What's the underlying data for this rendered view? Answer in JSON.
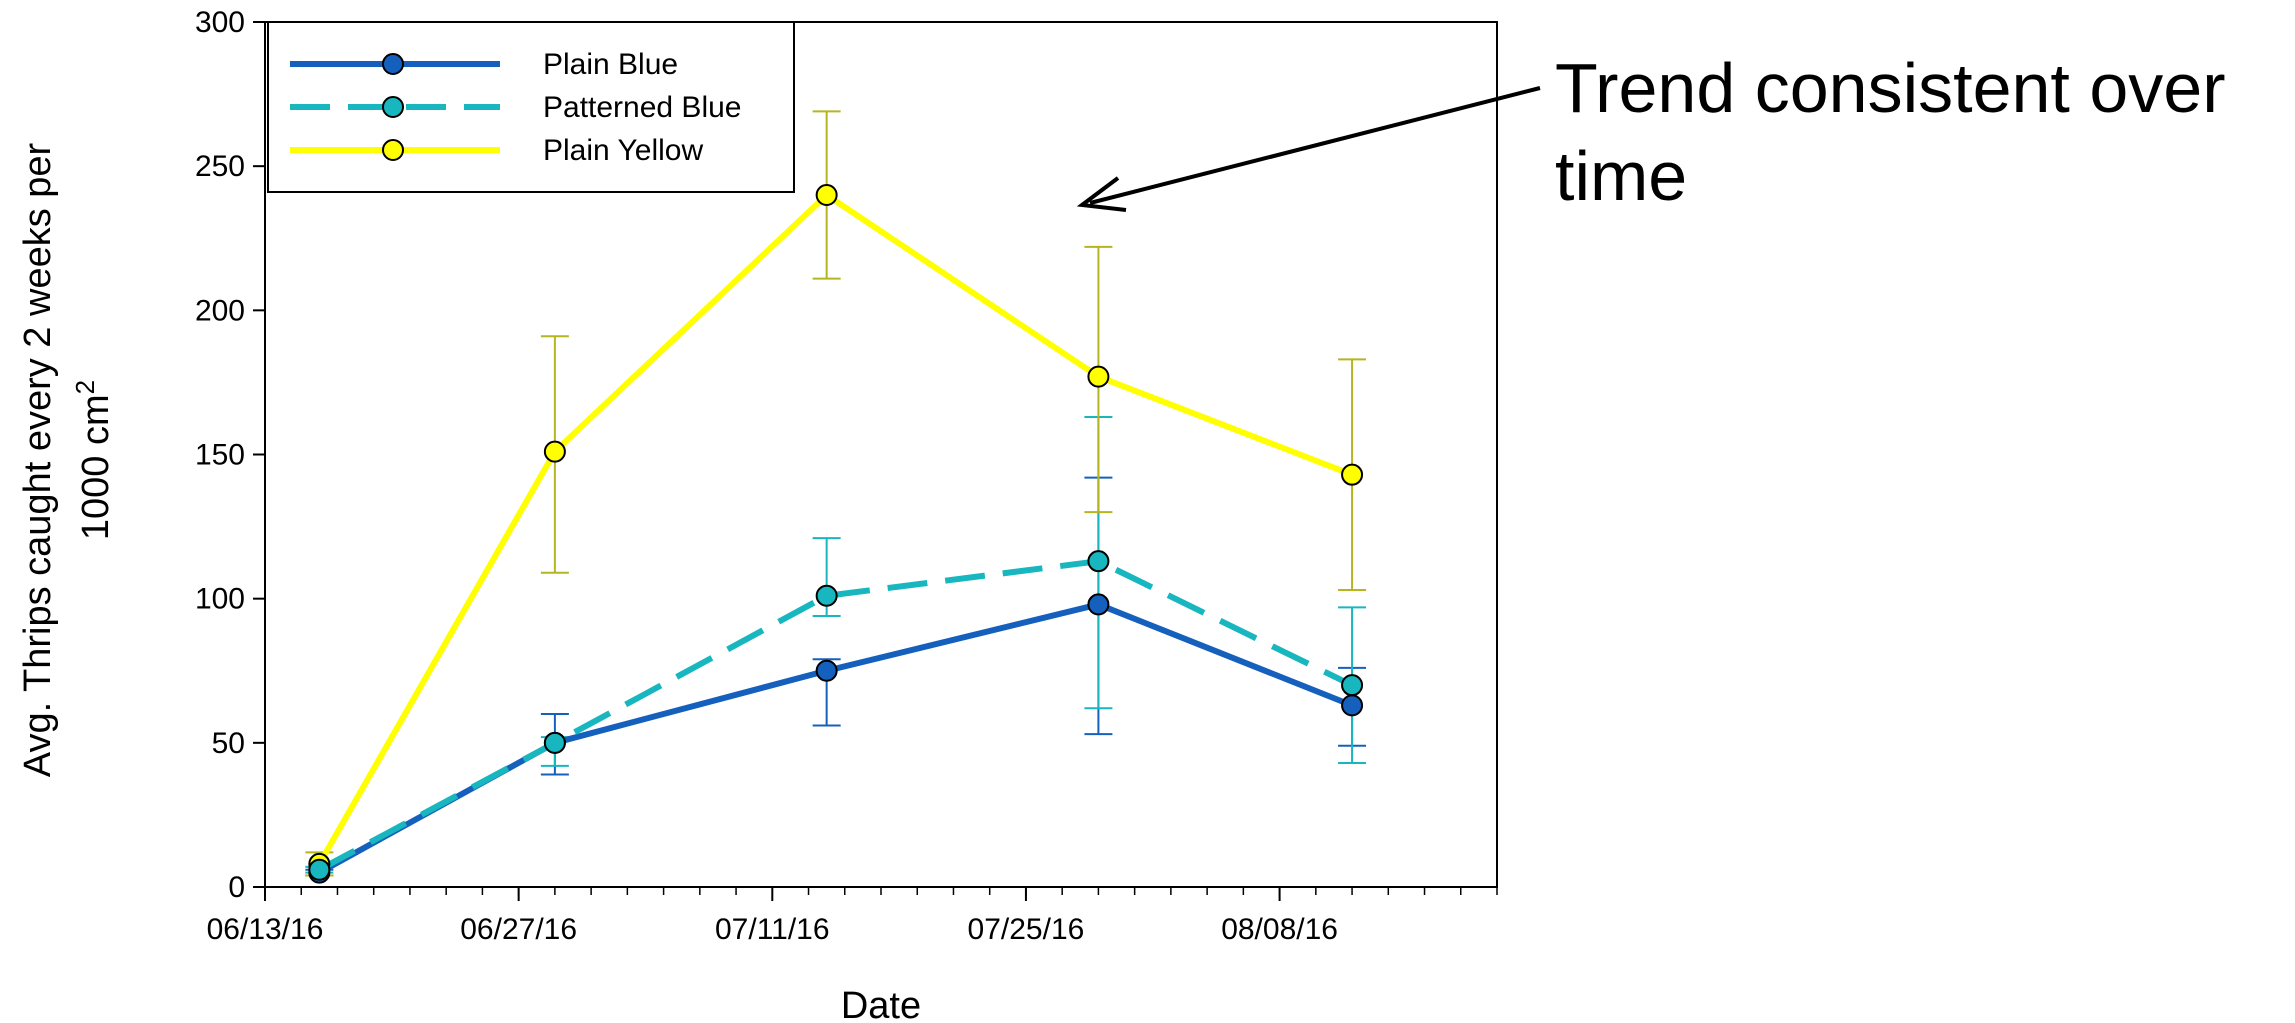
{
  "chart_data": {
    "type": "line",
    "xlabel": "Date",
    "ylabel_main": "Avg. Thrips caught every 2 weeks per",
    "ylabel_sub": "1000 cm",
    "ylabel_sup": "2",
    "x_ticks": [
      "06/13/16",
      "06/27/16",
      "07/11/16",
      "07/25/16",
      "08/08/16"
    ],
    "xlim": [
      "2016-06-13",
      "2016-08-20"
    ],
    "ylim": [
      0,
      300
    ],
    "y_ticks": [
      0,
      50,
      100,
      150,
      200,
      250,
      300
    ],
    "grid": false,
    "legend_position": "top-left",
    "x": [
      "2016-06-16",
      "2016-06-29",
      "2016-07-14",
      "2016-07-29",
      "2016-08-12"
    ],
    "series": [
      {
        "name": "Plain Blue",
        "color": "#1560bd",
        "line_style": "solid",
        "values": [
          5,
          50,
          75,
          98,
          63
        ],
        "err_low": [
          4,
          39,
          56,
          53,
          49
        ],
        "err_high": [
          6,
          60,
          79,
          142,
          76
        ]
      },
      {
        "name": "Patterned Blue",
        "color": "#18b7c0",
        "line_style": "dashed",
        "values": [
          6,
          50,
          101,
          113,
          70
        ],
        "err_low": [
          5,
          42,
          94,
          62,
          43
        ],
        "err_high": [
          7,
          52,
          121,
          163,
          97
        ]
      },
      {
        "name": "Plain Yellow",
        "color": "#ffff00",
        "err_color": "#b5b520",
        "line_style": "solid",
        "values": [
          8,
          151,
          240,
          177,
          143
        ],
        "err_low": [
          4,
          109,
          211,
          130,
          103
        ],
        "err_high": [
          12,
          191,
          269,
          222,
          183
        ]
      }
    ],
    "annotation": {
      "text_line1": "Trend consistent over",
      "text_line2": "time"
    }
  }
}
